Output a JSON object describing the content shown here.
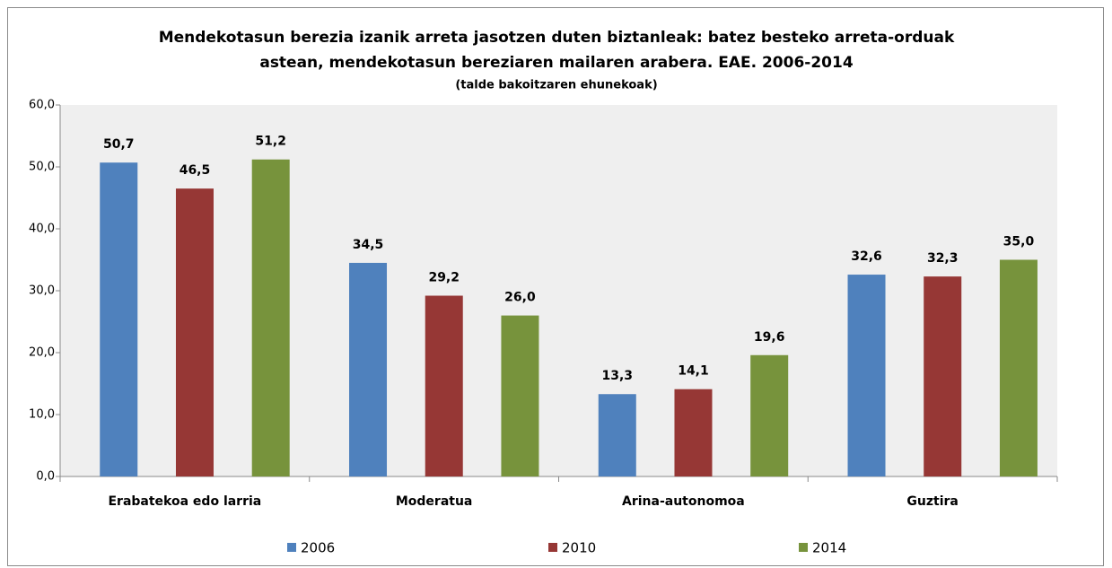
{
  "chart_data": {
    "type": "bar",
    "title": [
      "Mendekotasun berezia izanik arreta jasotzen duten biztanleak: batez besteko arreta-orduak",
      "astean, mendekotasun bereziaren mailaren arabera. EAE. 2006-2014"
    ],
    "subtitle": "(talde bakoitzaren ehunekoak)",
    "categories": [
      "Erabatekoa edo larria",
      "Moderatua",
      "Arina-autonomoa",
      "Guztira"
    ],
    "series": [
      {
        "name": "2006",
        "color": "#4f81bd",
        "values": [
          50.7,
          34.5,
          13.3,
          32.6
        ],
        "value_labels": [
          "50,7",
          "34,5",
          "13,3",
          "32,6"
        ]
      },
      {
        "name": "2010",
        "color": "#963735",
        "values": [
          46.5,
          29.2,
          14.1,
          32.3
        ],
        "value_labels": [
          "46,5",
          "29,2",
          "14,1",
          "32,3"
        ]
      },
      {
        "name": "2014",
        "color": "#77933c",
        "values": [
          51.2,
          26.0,
          19.6,
          35.0
        ],
        "value_labels": [
          "51,2",
          "26,0",
          "19,6",
          "35,0"
        ]
      }
    ],
    "ylim": [
      0,
      60
    ],
    "yticks": [
      {
        "value": 0,
        "label": "0,0"
      },
      {
        "value": 10,
        "label": "10,0"
      },
      {
        "value": 20,
        "label": "20,0"
      },
      {
        "value": 30,
        "label": "30,0"
      },
      {
        "value": 40,
        "label": "40,0"
      },
      {
        "value": 50,
        "label": "50,0"
      },
      {
        "value": 60,
        "label": "60,0"
      }
    ],
    "legend": "bottom"
  }
}
